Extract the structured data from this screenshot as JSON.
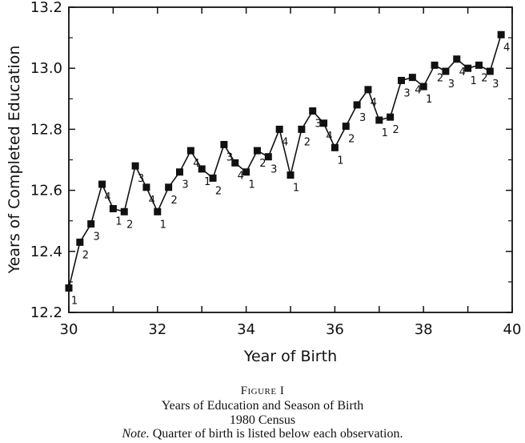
{
  "chart_data": {
    "type": "line",
    "xlabel": "Year of Birth",
    "ylabel": "Years of Completed Education",
    "xlim": [
      30,
      40
    ],
    "ylim": [
      12.2,
      13.2
    ],
    "xticks": [
      "30",
      "32",
      "34",
      "36",
      "38",
      "40"
    ],
    "yticks": [
      "12.2",
      "12.4",
      "12.6",
      "12.8",
      "13.0",
      "13.2"
    ],
    "grid": false,
    "legend": "none",
    "marker": "square",
    "series": [
      {
        "x": [
          30.0,
          30.25,
          30.5,
          30.75,
          31.0,
          31.25,
          31.5,
          31.75,
          32.0,
          32.25,
          32.5,
          32.75,
          33.0,
          33.25,
          33.5,
          33.75,
          34.0,
          34.25,
          34.5,
          34.75,
          35.0,
          35.25,
          35.5,
          35.75,
          36.0,
          36.25,
          36.5,
          36.75,
          37.0,
          37.25,
          37.5,
          37.75,
          38.0,
          38.25,
          38.5,
          38.75,
          39.0,
          39.25,
          39.5,
          39.75
        ],
        "values": [
          12.28,
          12.43,
          12.49,
          12.62,
          12.54,
          12.53,
          12.68,
          12.61,
          12.53,
          12.61,
          12.66,
          12.73,
          12.67,
          12.64,
          12.75,
          12.69,
          12.66,
          12.73,
          12.71,
          12.8,
          12.65,
          12.8,
          12.86,
          12.82,
          12.74,
          12.81,
          12.88,
          12.93,
          12.83,
          12.84,
          12.96,
          12.97,
          12.94,
          13.01,
          12.99,
          13.03,
          13.0,
          13.01,
          12.99,
          13.11
        ],
        "point_labels": [
          "1",
          "2",
          "3",
          "4",
          "1",
          "2",
          "3",
          "4",
          "1",
          "2",
          "3",
          "4",
          "1",
          "2",
          "3",
          "4",
          "1",
          "2",
          "3",
          "4",
          "1",
          "2",
          "3",
          "4",
          "1",
          "2",
          "3",
          "4",
          "1",
          "2",
          "3",
          "4",
          "1",
          "2",
          "3",
          "4",
          "1",
          "2",
          "3",
          "4"
        ]
      }
    ]
  },
  "caption": {
    "figure": "Figure I",
    "title": "Years of Education and Season of Birth",
    "subtitle": "1980 Census",
    "note_lead": "Note.",
    "note_text": " Quarter of birth is listed below each observation."
  }
}
